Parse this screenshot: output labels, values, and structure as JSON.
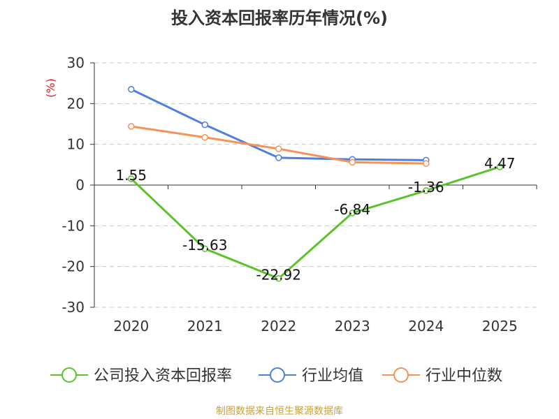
{
  "title": "投入资本回报率历年情况(%)",
  "source": "制图数据来自恒生聚源数据库",
  "chart_data": {
    "type": "line",
    "title": "投入资本回报率历年情况(%)",
    "ylabel": "(%)",
    "xlabel": "",
    "categories": [
      "2020",
      "2021",
      "2022",
      "2023",
      "2024",
      "2025"
    ],
    "ylim": [
      -30,
      30
    ],
    "yticks": [
      30,
      20,
      10,
      0,
      -10,
      -20,
      -30
    ],
    "grid": true,
    "legend_position": "bottom",
    "series": [
      {
        "name": "公司投入资本回报率",
        "color": "#5bc32a",
        "values": [
          1.55,
          -15.63,
          -22.92,
          -6.84,
          -1.36,
          4.47
        ],
        "labels": [
          "1.55",
          "-15.63",
          "-22.92",
          "-6.84",
          "-1.36",
          "4.47"
        ]
      },
      {
        "name": "行业均值",
        "color": "#4f7fde",
        "values": [
          23.5,
          14.8,
          6.7,
          6.3,
          6.1,
          null
        ]
      },
      {
        "name": "行业中位数",
        "color": "#f79256",
        "values": [
          14.4,
          11.7,
          8.9,
          5.6,
          5.3,
          null
        ]
      }
    ]
  }
}
